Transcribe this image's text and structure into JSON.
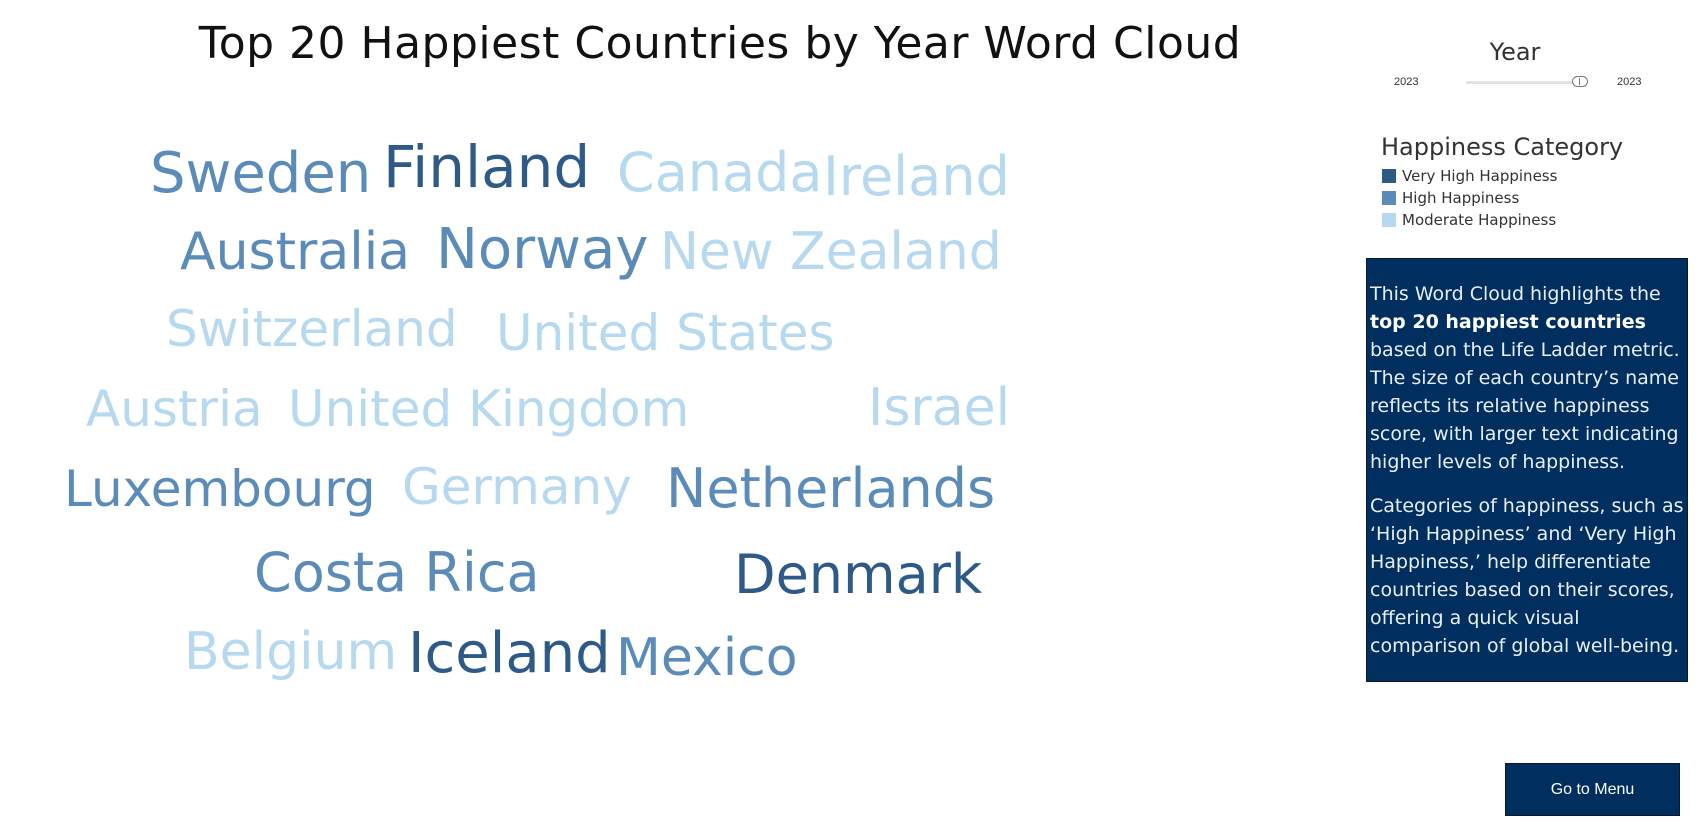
{
  "title": "Top 20 Happiest Countries by Year Word Cloud",
  "year_filter": {
    "title": "Year",
    "min_value": "2023",
    "max_value": "2023"
  },
  "legend": {
    "title": "Happiness Category",
    "items": [
      {
        "label": "Very High Happiness",
        "color": "#2e5a87"
      },
      {
        "label": "High Happiness",
        "color": "#5b8bb8"
      },
      {
        "label": "Moderate Happiness",
        "color": "#b6d9ef"
      }
    ]
  },
  "word_cloud": {
    "words": [
      {
        "text": "Sweden",
        "category": "High Happiness"
      },
      {
        "text": "Finland",
        "category": "Very High Happiness"
      },
      {
        "text": "Canada",
        "category": "Moderate Happiness"
      },
      {
        "text": "Ireland",
        "category": "Moderate Happiness"
      },
      {
        "text": "Australia",
        "category": "High Happiness"
      },
      {
        "text": "Norway",
        "category": "High Happiness"
      },
      {
        "text": "New Zealand",
        "category": "Moderate Happiness"
      },
      {
        "text": "Switzerland",
        "category": "Moderate Happiness"
      },
      {
        "text": "United States",
        "category": "Moderate Happiness"
      },
      {
        "text": "Austria",
        "category": "Moderate Happiness"
      },
      {
        "text": "United Kingdom",
        "category": "Moderate Happiness"
      },
      {
        "text": "Israel",
        "category": "Moderate Happiness"
      },
      {
        "text": "Luxembourg",
        "category": "High Happiness"
      },
      {
        "text": "Germany",
        "category": "Moderate Happiness"
      },
      {
        "text": "Netherlands",
        "category": "High Happiness"
      },
      {
        "text": "Costa Rica",
        "category": "High Happiness"
      },
      {
        "text": "Denmark",
        "category": "Very High Happiness"
      },
      {
        "text": "Belgium",
        "category": "Moderate Happiness"
      },
      {
        "text": "Iceland",
        "category": "Very High Happiness"
      },
      {
        "text": "Mexico",
        "category": "High Happiness"
      }
    ]
  },
  "info": {
    "p1_before": "This Word Cloud highlights the ",
    "p1_bold": "top 20 happiest countries",
    "p1_after": " based on the Life Ladder metric. The size of each country’s name reflects its relative happiness score, with larger text indicating higher levels of happiness.",
    "p2": "Categories of happiness, such as ‘High Happiness’ and ‘Very High Happiness,’ help differentiate countries based on their scores, offering a quick visual comparison of global well-being."
  },
  "menu_button_label": "Go to Menu"
}
